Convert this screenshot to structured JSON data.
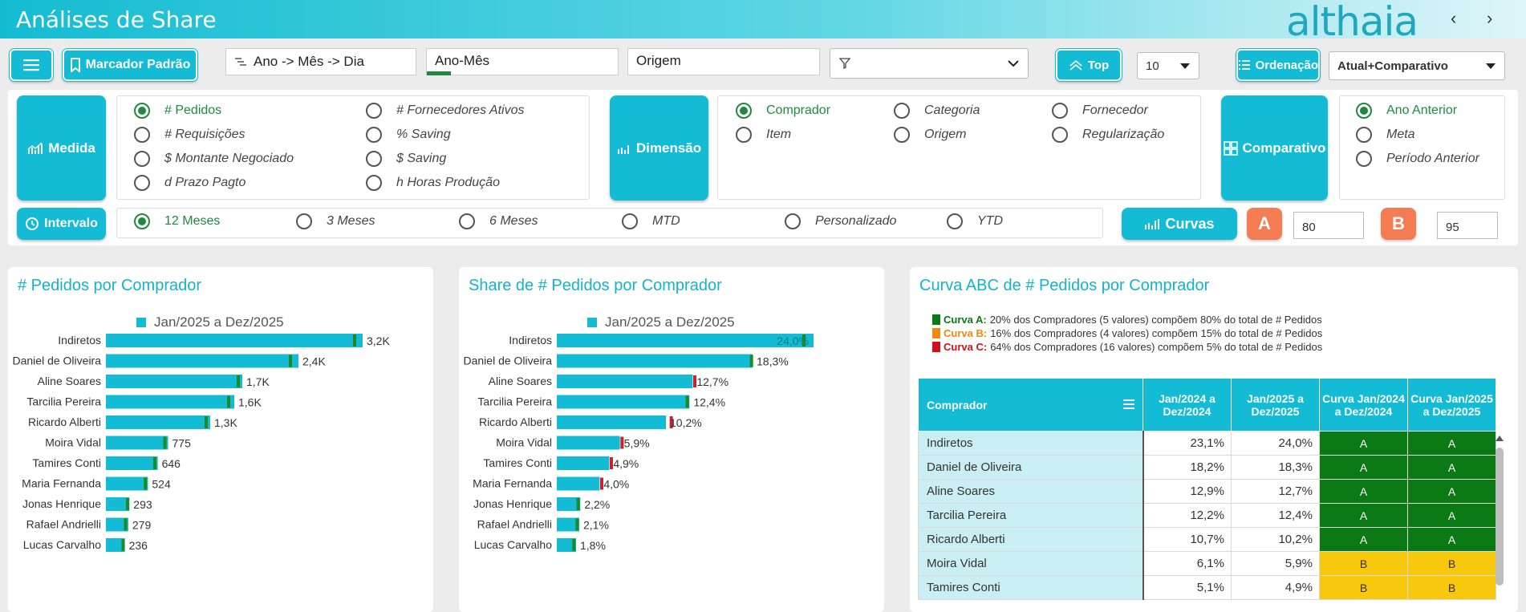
{
  "header": {
    "title": "Análises de Share",
    "logo": "althaia",
    "prev_icon": "chevron-left-icon",
    "next_icon": "chevron-right-icon"
  },
  "toolbar": {
    "menu_icon": "hamburger-icon",
    "bookmark_label": "Marcador Padrão",
    "hierarchy": "Ano -> Mês -> Dia",
    "period": "Ano-Mês",
    "origin": "Origem",
    "filter_value": "",
    "top_label": "Top",
    "top_value": "10",
    "order_label": "Ordenação",
    "order_value": "Atual+Comparativo"
  },
  "panel": {
    "medida_label": "Medida",
    "medida_options": [
      "# Pedidos",
      "# Fornecedores Ativos",
      "# Requisições",
      "% Saving",
      "$ Montante Negociado",
      "$ Saving",
      "d Prazo Pagto",
      "h Horas Produção"
    ],
    "dimensao_label": "Dimensão",
    "dimensao_options": [
      "Comprador",
      "Categoria",
      "Fornecedor",
      "Item",
      "Origem",
      "Regularização"
    ],
    "comparativo_label": "Comparativo",
    "comparativo_options": [
      "Ano Anterior",
      "Meta",
      "Período Anterior"
    ],
    "intervalo_label": "Intervalo",
    "intervalo_options": [
      "12 Meses",
      "3 Meses",
      "6 Meses",
      "MTD",
      "Personalizado",
      "YTD"
    ],
    "curvas_label": "Curvas",
    "a_label": "A",
    "a_value": "80",
    "b_label": "B",
    "b_value": "95"
  },
  "chart1": {
    "title": "# Pedidos por Comprador",
    "legend": "Jan/2025 a Dez/2025"
  },
  "chart2": {
    "title": "Share de # Pedidos por Comprador",
    "legend": "Jan/2025 a Dez/2025"
  },
  "chart_data": [
    {
      "type": "bar",
      "title": "# Pedidos por Comprador",
      "categories": [
        "Indiretos",
        "Daniel de Oliveira",
        "Aline Soares",
        "Tarcilia Pereira",
        "Ricardo Alberti",
        "Moira Vidal",
        "Tamires Conti",
        "Maria Fernanda",
        "Jonas Henrique",
        "Rafael Andrielli",
        "Lucas Carvalho"
      ],
      "series": [
        {
          "name": "Jan/2025 a Dez/2025",
          "values": [
            3200,
            2400,
            1700,
            1600,
            1300,
            775,
            646,
            524,
            293,
            279,
            236
          ]
        },
        {
          "name": "marker",
          "values": [
            3100,
            2300,
            1650,
            1530,
            1250,
            735,
            610,
            492,
            270,
            245,
            215
          ]
        }
      ],
      "labels": [
        "3,2K",
        "2,4K",
        "1,7K",
        "1,6K",
        "1,3K",
        "775",
        "646",
        "524",
        "293",
        "279",
        "236"
      ],
      "marker_colors": [
        "#1f8a1f",
        "#1f8a1f",
        "#1f8a1f",
        "#1f8a1f",
        "#1f8a1f",
        "#1f8a1f",
        "#1f8a1f",
        "#1f8a1f",
        "#1f8a1f",
        "#1f8a1f",
        "#1f8a1f"
      ],
      "xlim": [
        0,
        3200
      ]
    },
    {
      "type": "bar",
      "title": "Share de # Pedidos por Comprador",
      "categories": [
        "Indiretos",
        "Daniel de Oliveira",
        "Aline Soares",
        "Tarcilia Pereira",
        "Ricardo Alberti",
        "Moira Vidal",
        "Tamires Conti",
        "Maria Fernanda",
        "Jonas Henrique",
        "Rafael Andrielli",
        "Lucas Carvalho"
      ],
      "series": [
        {
          "name": "Jan/2025 a Dez/2025",
          "values": [
            24.0,
            18.3,
            12.7,
            12.4,
            10.2,
            5.9,
            4.9,
            4.0,
            2.2,
            2.1,
            1.8
          ]
        },
        {
          "name": "marker",
          "values": [
            23.1,
            18.2,
            12.9,
            12.2,
            10.7,
            6.1,
            5.1,
            4.2,
            2.0,
            1.9,
            1.6
          ]
        }
      ],
      "labels": [
        "24,0%",
        "18,3%",
        "12,7%",
        "12,4%",
        "10,2%",
        "5,9%",
        "4,9%",
        "4,0%",
        "2,2%",
        "2,1%",
        "1,8%"
      ],
      "marker_colors": [
        "#1f8a1f",
        "#1f8a1f",
        "#d0202a",
        "#1f8a1f",
        "#d0202a",
        "#d0202a",
        "#d0202a",
        "#d0202a",
        "#1f8a1f",
        "#1f8a1f",
        "#1f8a1f"
      ],
      "xlim": [
        0,
        24
      ]
    }
  ],
  "abc": {
    "title": "Curva ABC de # Pedidos por Comprador",
    "legend": [
      {
        "key": "Curva A:",
        "text": "20% dos Compradores (5 valores) compõem 80% do total de # Pedidos",
        "color": "#0b7a14"
      },
      {
        "key": "Curva B:",
        "text": "16% dos Compradores (4 valores) compõem 15% do total de # Pedidos",
        "color": "#f08a0c"
      },
      {
        "key": "Curva C:",
        "text": "64% dos Compradores (16 valores) compõem 5% do total de # Pedidos",
        "color": "#d0101a"
      }
    ],
    "columns": [
      "Comprador",
      "Jan/2024 a Dez/2024",
      "Jan/2025 a Dez/2025",
      "Curva Jan/2024 a Dez/2024",
      "Curva Jan/2025 a Dez/2025"
    ],
    "rows": [
      [
        "Indiretos",
        "23,1%",
        "24,0%",
        "A",
        "A"
      ],
      [
        "Daniel de Oliveira",
        "18,2%",
        "18,3%",
        "A",
        "A"
      ],
      [
        "Aline Soares",
        "12,9%",
        "12,7%",
        "A",
        "A"
      ],
      [
        "Tarcilia Pereira",
        "12,2%",
        "12,4%",
        "A",
        "A"
      ],
      [
        "Ricardo Alberti",
        "10,7%",
        "10,2%",
        "A",
        "A"
      ],
      [
        "Moira Vidal",
        "6,1%",
        "5,9%",
        "B",
        "B"
      ],
      [
        "Tamires Conti",
        "5,1%",
        "4,9%",
        "B",
        "B"
      ]
    ]
  }
}
